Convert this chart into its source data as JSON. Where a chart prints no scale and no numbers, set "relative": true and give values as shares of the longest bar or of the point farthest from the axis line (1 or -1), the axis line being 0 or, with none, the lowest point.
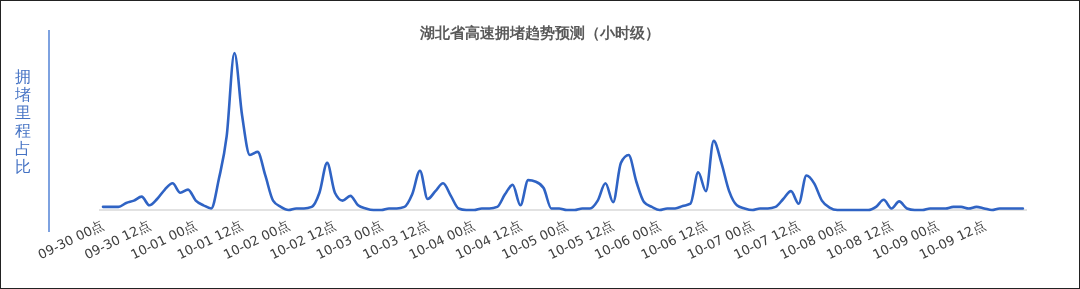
{
  "chart_data": {
    "type": "line",
    "title": "湖北省高速拥堵趋势预测（小时级）",
    "ylabel": "拥堵里程占比",
    "relative": true,
    "marker": "none",
    "categories": [
      "09-30 00点",
      null,
      null,
      null,
      null,
      null,
      "09-30 12点",
      null,
      null,
      null,
      null,
      null,
      "10-01 00点",
      null,
      null,
      null,
      null,
      null,
      "10-01 12点",
      null,
      null,
      null,
      null,
      null,
      "10-02 00点",
      null,
      null,
      null,
      null,
      null,
      "10-02 12点",
      null,
      null,
      null,
      null,
      null,
      "10-03 00点",
      null,
      null,
      null,
      null,
      null,
      "10-03 12点",
      null,
      null,
      null,
      null,
      null,
      "10-04 00点",
      null,
      null,
      null,
      null,
      null,
      "10-04 12点",
      null,
      null,
      null,
      null,
      null,
      "10-05 00点",
      null,
      null,
      null,
      null,
      null,
      "10-05 12点",
      null,
      null,
      null,
      null,
      null,
      "10-06 00点",
      null,
      null,
      null,
      null,
      null,
      "10-06 12点",
      null,
      null,
      null,
      null,
      null,
      "10-07 00点",
      null,
      null,
      null,
      null,
      null,
      "10-07 12点",
      null,
      null,
      null,
      null,
      null,
      "10-08 00点",
      null,
      null,
      null,
      null,
      null,
      "10-08 12点",
      null,
      null,
      null,
      null,
      null,
      "10-09 00点",
      null,
      null,
      null,
      null,
      null,
      "10-09 12点",
      null,
      null,
      null,
      null,
      null
    ],
    "series": [
      {
        "color": "#2f63c4",
        "values": [
          0.02,
          0.02,
          0.02,
          0.045,
          0.06,
          0.085,
          0.03,
          0.07,
          0.13,
          0.17,
          0.11,
          0.13,
          0.06,
          0.03,
          0.01,
          0.2,
          0.47,
          1,
          0.6,
          0.35,
          0.37,
          0.22,
          0.06,
          0.02,
          0,
          0.01,
          0.01,
          0.02,
          0.11,
          0.3,
          0.11,
          0.06,
          0.09,
          0.03,
          0.01,
          0,
          0,
          0.01,
          0.01,
          0.02,
          0.1,
          0.25,
          0.07,
          0.12,
          0.17,
          0.09,
          0.01,
          0,
          0,
          0.01,
          0.01,
          0.02,
          0.1,
          0.16,
          0.03,
          0.19,
          0.18,
          0.14,
          0.01,
          0.01,
          0,
          0,
          0.01,
          0.01,
          0.06,
          0.17,
          0.05,
          0.3,
          0.35,
          0.18,
          0.05,
          0.02,
          0,
          0.01,
          0.01,
          0.025,
          0.04,
          0.24,
          0.12,
          0.44,
          0.3,
          0.12,
          0.03,
          0.01,
          0,
          0.01,
          0.01,
          0.02,
          0.07,
          0.12,
          0.04,
          0.22,
          0.17,
          0.06,
          0.015,
          0,
          0,
          0,
          0,
          0,
          0.02,
          0.065,
          0.01,
          0.055,
          0.01,
          0,
          0,
          0.01,
          0.01,
          0.01,
          0.02,
          0.02,
          0.01,
          0.02,
          0.01,
          0,
          0.01,
          0.01,
          0.01,
          0.01
        ]
      }
    ]
  }
}
